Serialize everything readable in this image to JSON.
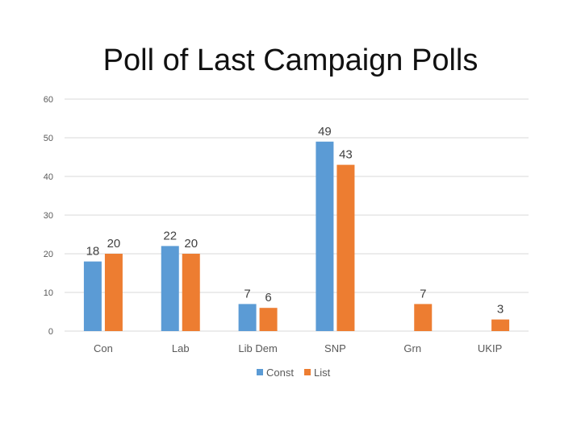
{
  "chart_data": {
    "type": "bar",
    "title": "Poll of Last Campaign Polls",
    "xlabel": "",
    "ylabel": "",
    "categories": [
      "Con",
      "Lab",
      "Lib Dem",
      "SNP",
      "Grn",
      "UKIP"
    ],
    "series": [
      {
        "name": "Const",
        "color": "#5B9BD5",
        "values": [
          18,
          22,
          7,
          49,
          null,
          null
        ]
      },
      {
        "name": "List",
        "color": "#ED7D31",
        "values": [
          20,
          20,
          6,
          43,
          7,
          3
        ]
      }
    ],
    "ylim": [
      0,
      60
    ],
    "yticks": [
      0,
      10,
      20,
      30,
      40,
      50,
      60
    ],
    "grid": true,
    "gridline_color": "#D9D9D9",
    "legend_position": "bottom",
    "data_labels": true
  }
}
